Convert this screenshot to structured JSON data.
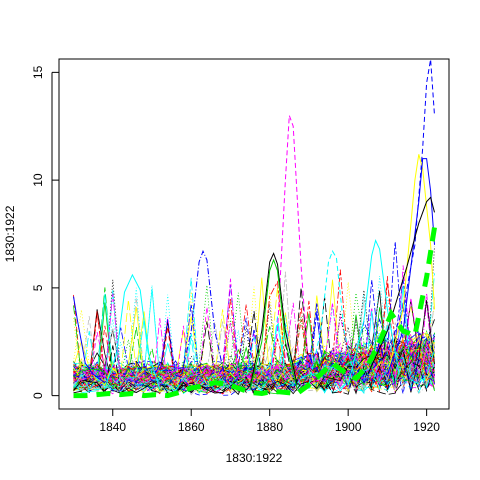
{
  "chart_data": {
    "type": "line",
    "title": "",
    "xlabel": "1830:1922",
    "ylabel": "1830:1922",
    "xlim": [
      1826.3,
      1925.7
    ],
    "ylim": [
      -0.62,
      15.62
    ],
    "x_ticks": [
      1840,
      1860,
      1880,
      1900,
      1920
    ],
    "y_ticks": [
      0,
      5,
      10,
      15
    ],
    "x_tick_labels": [
      "1840",
      "1860",
      "1880",
      "1900",
      "1920"
    ],
    "y_tick_labels": [
      "0",
      "5",
      "10",
      "15"
    ],
    "grid": false,
    "legend": "none",
    "series_count_approx": 150,
    "palette": [
      "#000000",
      "#ff0000",
      "#00cd00",
      "#0000ff",
      "#00ffff",
      "#ff00ff",
      "#ffff00",
      "#bebebe"
    ],
    "highlight_series": {
      "color": "#00ff00",
      "style": "dashed-thick",
      "x": [
        1830,
        1833,
        1836,
        1839,
        1842,
        1845,
        1848,
        1851,
        1854,
        1857,
        1860,
        1863,
        1866,
        1869,
        1872,
        1875,
        1878,
        1881,
        1884,
        1887,
        1890,
        1893,
        1896,
        1899,
        1902,
        1905,
        1908,
        1911,
        1914,
        1917,
        1920,
        1922
      ],
      "values": [
        0.0,
        0.0,
        0.05,
        0.1,
        0.05,
        0.1,
        0.0,
        0.05,
        0.0,
        0.15,
        0.35,
        0.45,
        0.6,
        0.55,
        0.35,
        0.15,
        0.1,
        0.2,
        0.15,
        0.1,
        0.5,
        1.0,
        1.5,
        1.1,
        0.8,
        1.4,
        2.5,
        3.8,
        3.0,
        2.8,
        5.5,
        7.8
      ]
    },
    "peak_series": [
      {
        "color": "#0000ff",
        "style": "dashed",
        "x": [
          1905,
          1910,
          1914,
          1917,
          1919,
          1920,
          1921,
          1922
        ],
        "values": [
          1.0,
          2.0,
          4.0,
          7.0,
          11.5,
          14.5,
          15.6,
          13.0
        ]
      },
      {
        "color": "#ff00ff",
        "style": "dashed",
        "x": [
          1880,
          1882,
          1884,
          1885,
          1886,
          1888,
          1890
        ],
        "values": [
          0.8,
          3.0,
          10.0,
          13.0,
          12.5,
          6.0,
          1.0
        ]
      },
      {
        "color": "#ffff00",
        "style": "solid",
        "x": [
          1910,
          1914,
          1917,
          1918,
          1919,
          1921,
          1922
        ],
        "values": [
          1.0,
          4.0,
          10.0,
          11.2,
          10.5,
          7.0,
          4.0
        ]
      },
      {
        "color": "#0000ff",
        "style": "solid",
        "x": [
          1910,
          1914,
          1918,
          1919,
          1920,
          1921,
          1922
        ],
        "values": [
          1.0,
          3.0,
          9.0,
          11.0,
          11.0,
          9.5,
          7.0
        ]
      },
      {
        "color": "#000000",
        "style": "solid",
        "x": [
          1905,
          1910,
          1915,
          1918,
          1920,
          1921,
          1922
        ],
        "values": [
          1.0,
          3.0,
          6.0,
          8.0,
          9.0,
          9.2,
          8.5
        ]
      },
      {
        "color": "#0000ff",
        "style": "dashdot",
        "x": [
          1857,
          1860,
          1862,
          1863,
          1864,
          1866,
          1869
        ],
        "values": [
          0.5,
          3.0,
          6.2,
          6.7,
          6.3,
          3.0,
          0.5
        ]
      },
      {
        "color": "#00ffff",
        "style": "solid",
        "x": [
          1838,
          1841,
          1843,
          1845,
          1847,
          1849,
          1852
        ],
        "values": [
          0.3,
          2.0,
          4.8,
          5.6,
          4.9,
          2.0,
          0.3
        ]
      },
      {
        "color": "#00ffff",
        "style": "dashed",
        "x": [
          1890,
          1893,
          1895,
          1896,
          1897,
          1899,
          1902
        ],
        "values": [
          0.5,
          3.0,
          6.2,
          6.7,
          6.4,
          3.0,
          0.5
        ]
      },
      {
        "color": "#000000",
        "style": "solid",
        "x": [
          1875,
          1878,
          1880,
          1881,
          1882,
          1884,
          1887
        ],
        "values": [
          0.4,
          3.0,
          6.2,
          6.6,
          6.1,
          3.0,
          0.5
        ]
      },
      {
        "color": "#00cd00",
        "style": "solid",
        "x": [
          1875,
          1878,
          1880,
          1881,
          1882,
          1884,
          1887
        ],
        "values": [
          0.3,
          2.5,
          5.8,
          6.3,
          5.8,
          2.5,
          0.3
        ]
      },
      {
        "color": "#00ffff",
        "style": "solid",
        "x": [
          1900,
          1904,
          1906,
          1907,
          1908,
          1910,
          1913
        ],
        "values": [
          0.5,
          3.5,
          6.5,
          7.2,
          6.8,
          4.0,
          1.0
        ]
      },
      {
        "color": "#0000ff",
        "style": "solid",
        "x": [
          1830,
          1831,
          1832,
          1833,
          1835,
          1838
        ],
        "values": [
          4.6,
          3.5,
          2.5,
          1.5,
          1.0,
          0.6
        ]
      }
    ],
    "noise_band": {
      "min": 0.0,
      "typical_max": 2.5,
      "spike_max": 4.5
    }
  }
}
